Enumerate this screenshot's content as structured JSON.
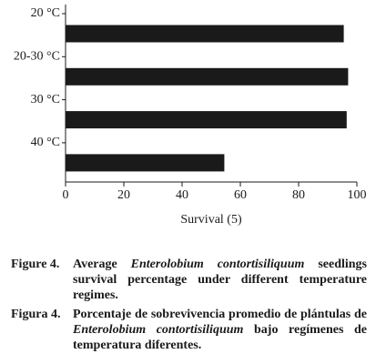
{
  "chart_data": {
    "type": "barh",
    "categories": [
      "20 °C",
      "20-30 °C",
      "30 °C",
      "40 °C"
    ],
    "values": [
      95.5,
      97,
      96.5,
      54.5
    ],
    "color": "#1a1a1a",
    "xlim": [
      0,
      100
    ],
    "xticks": [
      0,
      20,
      40,
      60,
      80,
      100
    ],
    "xlabel": "Survival (5)"
  },
  "caption": {
    "en": {
      "label": "Figure 4.",
      "before": "Average ",
      "italic": "Enterolobium contortisiliquum",
      "after": " seedlings survival percentage under different temperature regimes."
    },
    "es": {
      "label": "Figura 4.",
      "before": "Porcentaje de sobrevivencia promedio de plántulas de ",
      "italic": "Enterolobium contortisiliquum",
      "after": " bajo regímenes de temperatura diferentes."
    }
  }
}
